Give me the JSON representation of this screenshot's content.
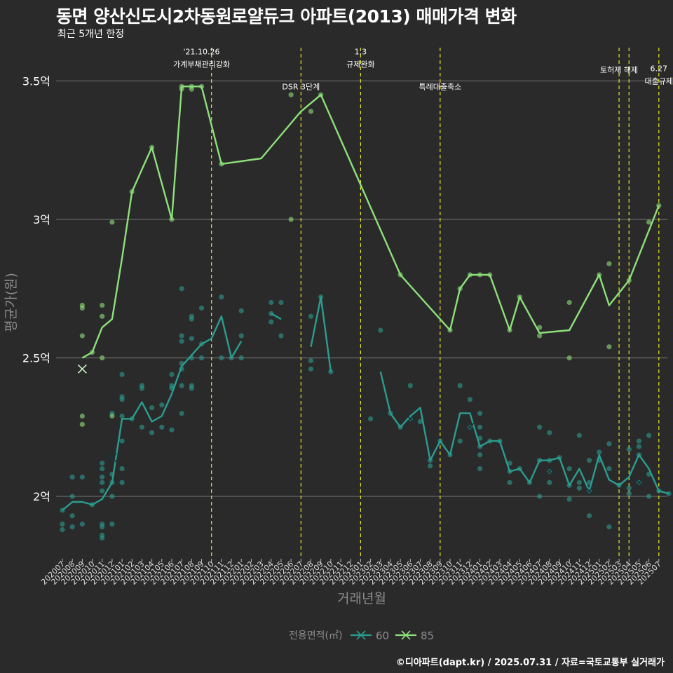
{
  "header": {
    "title": "동면 양산신도시2차동원로얄듀크 아파트(2013) 매매가격 변화",
    "subtitle": "최근 5개년 한정"
  },
  "caption": "©디아파트(dapt.kr) / 2025.07.31 / 자료=국토교통부 실거래가",
  "chart_data": {
    "type": "line",
    "xlabel": "거래년월",
    "ylabel": "평균가(원)",
    "ylim": [
      1.78,
      3.62
    ],
    "yticks": [
      {
        "value": 2.0,
        "label": "2억"
      },
      {
        "value": 2.5,
        "label": "2.5억"
      },
      {
        "value": 3.0,
        "label": "3억"
      },
      {
        "value": 3.5,
        "label": "3.5억"
      }
    ],
    "categories": [
      "202007",
      "202008",
      "202009",
      "202010",
      "202011",
      "202012",
      "202101",
      "202102",
      "202103",
      "202104",
      "202105",
      "202106",
      "202107",
      "202108",
      "202109",
      "202110",
      "202111",
      "202112",
      "202201",
      "202202",
      "202203",
      "202204",
      "202205",
      "202206",
      "202207",
      "202208",
      "202209",
      "202210",
      "202211",
      "202212",
      "202301",
      "202302",
      "202303",
      "202304",
      "202305",
      "202306",
      "202307",
      "202308",
      "202309",
      "202310",
      "202311",
      "202312",
      "202401",
      "202402",
      "202403",
      "202404",
      "202405",
      "202406",
      "202407",
      "202408",
      "202409",
      "202410",
      "202411",
      "202412",
      "202501",
      "202502",
      "202503",
      "202504",
      "202505",
      "202506",
      "202507"
    ],
    "legend": {
      "title": "전용면적(㎡)",
      "position": "bottom"
    },
    "series": [
      {
        "name": "60",
        "color": "#2a9d8f",
        "segments": [
          [
            [
              0,
              1.95
            ],
            [
              1,
              1.98
            ],
            [
              2,
              1.98
            ],
            [
              3,
              1.97
            ],
            [
              4,
              1.99
            ],
            [
              5,
              2.05
            ],
            [
              6,
              2.28
            ],
            [
              7,
              2.28
            ],
            [
              8,
              2.34
            ],
            [
              9,
              2.27
            ],
            [
              10,
              2.29
            ],
            [
              11,
              2.37
            ],
            [
              12,
              2.47
            ],
            [
              13,
              2.51
            ],
            [
              14,
              2.55
            ],
            [
              15,
              2.57
            ],
            [
              16,
              2.65
            ],
            [
              17,
              2.5
            ],
            [
              18,
              2.56
            ]
          ],
          [
            [
              21,
              2.66
            ],
            [
              22,
              2.64
            ]
          ],
          [
            [
              25,
              2.54
            ],
            [
              26,
              2.72
            ],
            [
              27,
              2.45
            ]
          ],
          [
            [
              32,
              2.45
            ],
            [
              33,
              2.3
            ],
            [
              34,
              2.25
            ],
            [
              35,
              2.29
            ],
            [
              36,
              2.32
            ],
            [
              37,
              2.13
            ],
            [
              38,
              2.2
            ],
            [
              39,
              2.15
            ],
            [
              40,
              2.3
            ],
            [
              41,
              2.3
            ],
            [
              42,
              2.18
            ],
            [
              43,
              2.2
            ],
            [
              44,
              2.2
            ],
            [
              45,
              2.09
            ],
            [
              46,
              2.1
            ],
            [
              47,
              2.05
            ],
            [
              48,
              2.13
            ],
            [
              49,
              2.13
            ],
            [
              50,
              2.14
            ],
            [
              51,
              2.04
            ],
            [
              52,
              2.1
            ],
            [
              53,
              2.02
            ],
            [
              54,
              2.15
            ],
            [
              55,
              2.06
            ],
            [
              56,
              2.04
            ],
            [
              57,
              2.07
            ],
            [
              58,
              2.15
            ],
            [
              59,
              2.1
            ],
            [
              60,
              2.02
            ],
            [
              61,
              2.01
            ]
          ]
        ],
        "points": [
          [
            0,
            1.95
          ],
          [
            0,
            1.88
          ],
          [
            0,
            1.9
          ],
          [
            1,
            1.93
          ],
          [
            1,
            2.0
          ],
          [
            1,
            2.07
          ],
          [
            1,
            1.89
          ],
          [
            2,
            2.07
          ],
          [
            2,
            1.9
          ],
          [
            3,
            1.97
          ],
          [
            4,
            2.1
          ],
          [
            4,
            2.12
          ],
          [
            4,
            2.05
          ],
          [
            4,
            2.02
          ],
          [
            4,
            1.9
          ],
          [
            4,
            1.86
          ],
          [
            4,
            1.85
          ],
          [
            4,
            1.89
          ],
          [
            4,
            2.07
          ],
          [
            5,
            2.05
          ],
          [
            5,
            2.08
          ],
          [
            5,
            1.9
          ],
          [
            5,
            2.0
          ],
          [
            5,
            2.3
          ],
          [
            6,
            2.44
          ],
          [
            6,
            2.36
          ],
          [
            6,
            2.35
          ],
          [
            6,
            2.29
          ],
          [
            6,
            2.2
          ],
          [
            6,
            2.1
          ],
          [
            6,
            2.05
          ],
          [
            7,
            2.28
          ],
          [
            8,
            2.4
          ],
          [
            8,
            2.39
          ],
          [
            8,
            2.25
          ],
          [
            9,
            2.32
          ],
          [
            9,
            2.23
          ],
          [
            10,
            2.25
          ],
          [
            10,
            2.33
          ],
          [
            11,
            2.4
          ],
          [
            11,
            2.44
          ],
          [
            11,
            2.39
          ],
          [
            11,
            2.24
          ],
          [
            12,
            2.75
          ],
          [
            12,
            2.58
          ],
          [
            12,
            2.56
          ],
          [
            12,
            2.48
          ],
          [
            12,
            2.46
          ],
          [
            12,
            2.4
          ],
          [
            12,
            2.3
          ],
          [
            13,
            2.65
          ],
          [
            13,
            2.64
          ],
          [
            13,
            2.57
          ],
          [
            13,
            2.5
          ],
          [
            13,
            2.4
          ],
          [
            13,
            2.39
          ],
          [
            14,
            2.68
          ],
          [
            14,
            2.55
          ],
          [
            14,
            2.5
          ],
          [
            16,
            2.72
          ],
          [
            16,
            2.5
          ],
          [
            17,
            2.5
          ],
          [
            18,
            2.67
          ],
          [
            18,
            2.58
          ],
          [
            18,
            2.5
          ],
          [
            21,
            2.7
          ],
          [
            21,
            2.66
          ],
          [
            21,
            2.63
          ],
          [
            22,
            2.7
          ],
          [
            22,
            2.58
          ],
          [
            25,
            2.65
          ],
          [
            25,
            2.49
          ],
          [
            25,
            2.46
          ],
          [
            26,
            2.72
          ],
          [
            27,
            2.45
          ],
          [
            31,
            2.28
          ],
          [
            32,
            2.6
          ],
          [
            33,
            2.3
          ],
          [
            34,
            2.25
          ],
          [
            35,
            2.28
          ],
          [
            35,
            2.4
          ],
          [
            36,
            2.27
          ],
          [
            37,
            2.13
          ],
          [
            37,
            2.11
          ],
          [
            38,
            2.2
          ],
          [
            39,
            2.15
          ],
          [
            40,
            2.4
          ],
          [
            40,
            2.2
          ],
          [
            41,
            2.35
          ],
          [
            41,
            2.25
          ],
          [
            42,
            2.3
          ],
          [
            42,
            2.25
          ],
          [
            42,
            2.21
          ],
          [
            42,
            2.18
          ],
          [
            42,
            2.15
          ],
          [
            42,
            2.1
          ],
          [
            43,
            2.2
          ],
          [
            44,
            2.2
          ],
          [
            45,
            2.12
          ],
          [
            45,
            2.09
          ],
          [
            45,
            2.05
          ],
          [
            46,
            2.1
          ],
          [
            47,
            2.05
          ],
          [
            48,
            2.25
          ],
          [
            48,
            2.13
          ],
          [
            48,
            2.0
          ],
          [
            49,
            2.23
          ],
          [
            49,
            2.13
          ],
          [
            49,
            2.09
          ],
          [
            49,
            2.05
          ],
          [
            50,
            2.14
          ],
          [
            51,
            2.1
          ],
          [
            51,
            2.04
          ],
          [
            51,
            1.99
          ],
          [
            52,
            2.22
          ],
          [
            52,
            2.05
          ],
          [
            52,
            2.03
          ],
          [
            53,
            2.13
          ],
          [
            53,
            2.05
          ],
          [
            53,
            2.02
          ],
          [
            53,
            1.93
          ],
          [
            54,
            2.16
          ],
          [
            54,
            2.13
          ],
          [
            55,
            2.19
          ],
          [
            55,
            2.1
          ],
          [
            55,
            1.89
          ],
          [
            56,
            2.04
          ],
          [
            57,
            2.17
          ],
          [
            57,
            2.03
          ],
          [
            57,
            2.01
          ],
          [
            58,
            2.2
          ],
          [
            58,
            2.18
          ],
          [
            58,
            2.15
          ],
          [
            58,
            2.05
          ],
          [
            59,
            2.22
          ],
          [
            59,
            2.08
          ],
          [
            59,
            2.0
          ],
          [
            60,
            2.02
          ],
          [
            61,
            2.01
          ]
        ],
        "markers": [
          [
            2,
            2.46
          ],
          [
            5,
            2.14
          ],
          [
            32,
            2.3
          ],
          [
            35,
            2.28
          ],
          [
            41,
            2.25
          ],
          [
            49,
            2.09
          ],
          [
            53,
            2.02
          ],
          [
            58,
            2.05
          ]
        ]
      },
      {
        "name": "85",
        "color": "#8de07a",
        "segments": [
          [
            [
              2,
              2.5
            ],
            [
              3,
              2.52
            ],
            [
              4,
              2.61
            ],
            [
              5,
              2.64
            ],
            [
              6,
              2.86
            ],
            [
              7,
              3.1
            ],
            [
              8,
              3.18
            ],
            [
              9,
              3.26
            ],
            [
              11,
              3.0
            ],
            [
              12,
              3.48
            ],
            [
              13,
              3.48
            ],
            [
              14,
              3.48
            ],
            [
              16,
              3.2
            ],
            [
              20,
              3.22
            ],
            [
              24,
              3.39
            ],
            [
              26,
              3.45
            ],
            [
              34,
              2.8
            ],
            [
              39,
              2.6
            ],
            [
              40,
              2.75
            ],
            [
              41,
              2.8
            ],
            [
              42,
              2.8
            ],
            [
              43,
              2.8
            ],
            [
              45,
              2.6
            ],
            [
              46,
              2.72
            ],
            [
              48,
              2.59
            ],
            [
              51,
              2.6
            ],
            [
              54,
              2.8
            ],
            [
              55,
              2.69
            ],
            [
              57,
              2.78
            ],
            [
              60,
              3.05
            ]
          ]
        ],
        "points": [
          [
            2,
            2.69
          ],
          [
            2,
            2.68
          ],
          [
            2,
            2.58
          ],
          [
            2,
            2.29
          ],
          [
            2,
            2.26
          ],
          [
            3,
            2.52
          ],
          [
            4,
            2.69
          ],
          [
            4,
            2.65
          ],
          [
            4,
            2.5
          ],
          [
            5,
            2.99
          ],
          [
            5,
            2.29
          ],
          [
            7,
            3.1
          ],
          [
            9,
            3.26
          ],
          [
            11,
            3.0
          ],
          [
            12,
            3.48
          ],
          [
            12,
            3.47
          ],
          [
            13,
            3.48
          ],
          [
            13,
            3.47
          ],
          [
            14,
            3.48
          ],
          [
            16,
            3.2
          ],
          [
            23,
            3.45
          ],
          [
            23,
            3.0
          ],
          [
            25,
            3.39
          ],
          [
            26,
            3.45
          ],
          [
            34,
            2.8
          ],
          [
            39,
            2.6
          ],
          [
            40,
            2.75
          ],
          [
            41,
            2.8
          ],
          [
            42,
            2.8
          ],
          [
            43,
            2.8
          ],
          [
            45,
            2.6
          ],
          [
            46,
            2.72
          ],
          [
            48,
            2.61
          ],
          [
            48,
            2.58
          ],
          [
            51,
            2.7
          ],
          [
            51,
            2.5
          ],
          [
            54,
            2.8
          ],
          [
            55,
            2.84
          ],
          [
            55,
            2.54
          ],
          [
            57,
            2.78
          ],
          [
            59,
            2.99
          ],
          [
            60,
            3.05
          ]
        ],
        "markers": [
          [
            2,
            2.46
          ]
        ]
      }
    ],
    "events": [
      {
        "x": 15,
        "label": "'21.10.26\n가계부채관리강화",
        "text_x": 14,
        "text_y": 3.55
      },
      {
        "x": 24,
        "label": "DSR 3단계",
        "text_x": 24,
        "text_y": 3.47
      },
      {
        "x": 30,
        "label": "1.3\n규제완화",
        "text_x": 30,
        "text_y": 3.55
      },
      {
        "x": 38,
        "label": "특례대출축소",
        "text_x": 38,
        "text_y": 3.47
      },
      {
        "x": 56,
        "label": "토허제 해제",
        "text_x": 56,
        "text_y": 3.53
      },
      {
        "x": 57,
        "label": "",
        "text_x": 57,
        "text_y": 3.53
      },
      {
        "x": 60,
        "label": "6.27\n대출규제",
        "text_x": 60,
        "text_y": 3.49
      }
    ]
  }
}
